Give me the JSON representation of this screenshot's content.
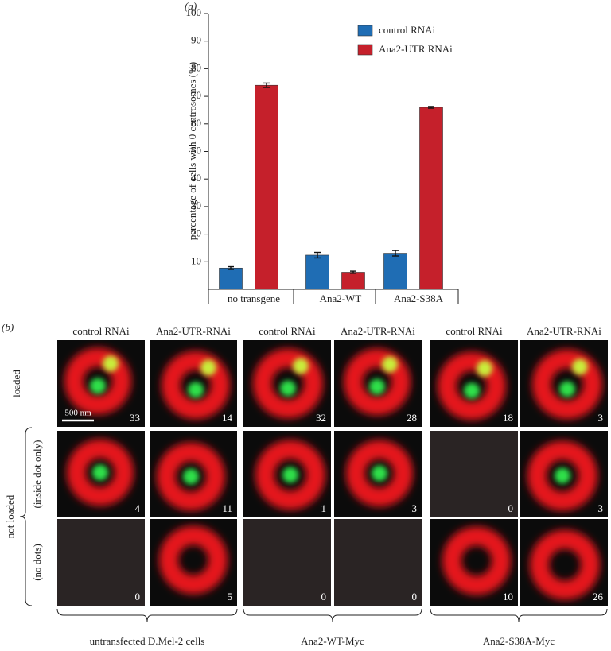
{
  "chart_data": {
    "type": "bar",
    "panel_label": "(a)",
    "y_label": "percentage  of cells with 0 centrosomes (%)",
    "categories": [
      "no transgene",
      "Ana2-WT",
      "Ana2-S38A"
    ],
    "series": [
      {
        "name": "control RNAi",
        "color": "#1f6db4",
        "values": [
          7.7,
          12.4,
          13.1
        ],
        "errors": [
          0.5,
          1.0,
          1.0
        ]
      },
      {
        "name": "Ana2-UTR RNAi",
        "color": "#c5202b",
        "values": [
          74,
          6.2,
          66
        ],
        "errors": [
          0.8,
          0.4,
          0.3
        ]
      }
    ],
    "ylim": [
      0,
      100
    ],
    "yticks": [
      10,
      20,
      30,
      40,
      50,
      60,
      70,
      80,
      90,
      100
    ]
  },
  "panel_b": {
    "panel_label": "(b)",
    "column_headers": [
      "control RNAi",
      "Ana2-UTR-RNAi",
      "control RNAi",
      "Ana2-UTR-RNAi",
      "control RNAi",
      "Ana2-UTR-RNAi"
    ],
    "row_labels": [
      "loaded",
      "(inside dot only)",
      "(no dots)"
    ],
    "row_group_label": "not loaded",
    "scale_bar": "500 nm",
    "counts": [
      [
        33,
        14,
        32,
        28,
        18,
        3
      ],
      [
        4,
        11,
        1,
        3,
        0,
        3
      ],
      [
        0,
        5,
        0,
        0,
        10,
        26
      ]
    ],
    "group_labels": [
      "untransfected D.Mel-2 cells",
      "Ana2-WT-Myc",
      "Ana2-S38A-Myc"
    ]
  }
}
